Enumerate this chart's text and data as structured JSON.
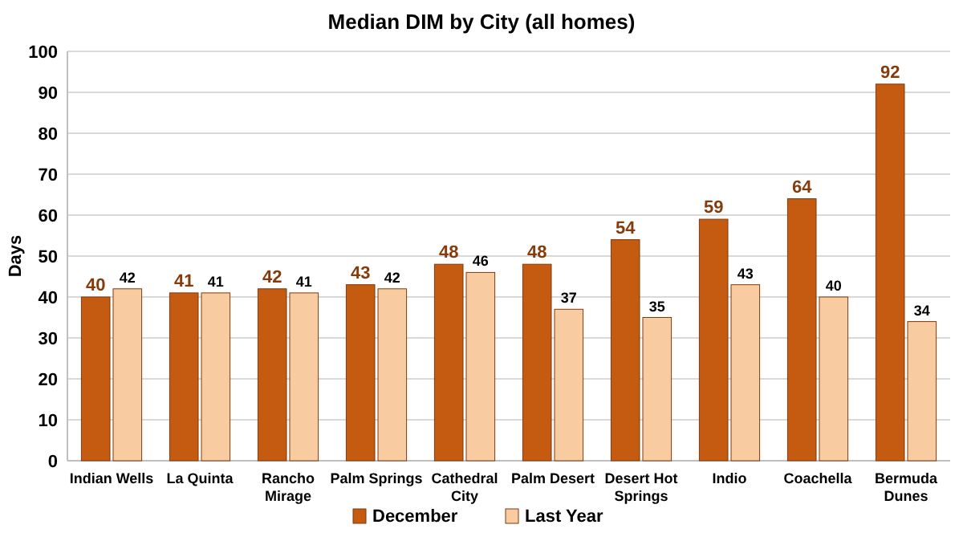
{
  "chart_data": {
    "type": "bar",
    "title": "Median DIM by City (all homes)",
    "ylabel": "Days",
    "categories": [
      "Indian Wells",
      "La Quinta",
      "Rancho Mirage",
      "Palm Springs",
      "Cathedral City",
      "Palm Desert",
      "Desert Hot Springs",
      "Indio",
      "Coachella",
      "Bermuda Dunes"
    ],
    "series": [
      {
        "name": "December",
        "color": "#c55a11",
        "values": [
          40,
          41,
          42,
          43,
          48,
          48,
          54,
          59,
          64,
          92
        ]
      },
      {
        "name": "Last Year",
        "color": "#f8cba0",
        "values": [
          42,
          41,
          41,
          42,
          46,
          37,
          35,
          43,
          40,
          34
        ]
      }
    ],
    "ylim": [
      0,
      100
    ],
    "yticks": [
      0,
      10,
      20,
      30,
      40,
      50,
      60,
      70,
      80,
      90,
      100
    ],
    "grid": "y",
    "legend": "bottom",
    "data_labels": true
  }
}
